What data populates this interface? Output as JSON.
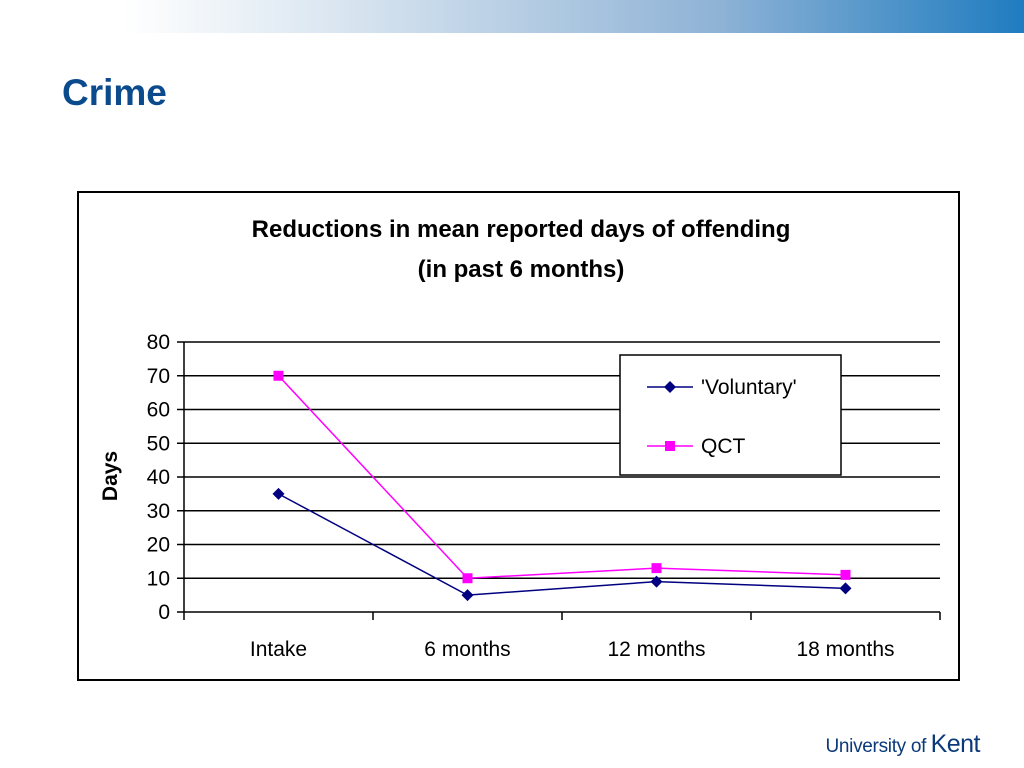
{
  "slide": {
    "title": "Crime",
    "logo": {
      "prefix": "University of",
      "name": "Kent"
    }
  },
  "colors": {
    "title": "#0b4a8c",
    "voluntary": "#000080",
    "qct": "#ff00ff",
    "logo": "#0b3a7a"
  },
  "chart_data": {
    "type": "line",
    "title": "Reductions in mean reported days of offending",
    "subtitle": "(in past 6 months)",
    "xlabel": "",
    "ylabel": "Days",
    "categories": [
      "Intake",
      "6 months",
      "12 months",
      "18 months"
    ],
    "ylim": [
      0,
      80
    ],
    "yticks": [
      0,
      10,
      20,
      30,
      40,
      50,
      60,
      70,
      80
    ],
    "grid": true,
    "legend_position": "top-right",
    "series": [
      {
        "name": "'Voluntary'",
        "marker": "diamond",
        "color": "#000080",
        "values": [
          35,
          5,
          9,
          7
        ]
      },
      {
        "name": "QCT",
        "marker": "square",
        "color": "#ff00ff",
        "values": [
          70,
          10,
          13,
          11
        ]
      }
    ]
  }
}
